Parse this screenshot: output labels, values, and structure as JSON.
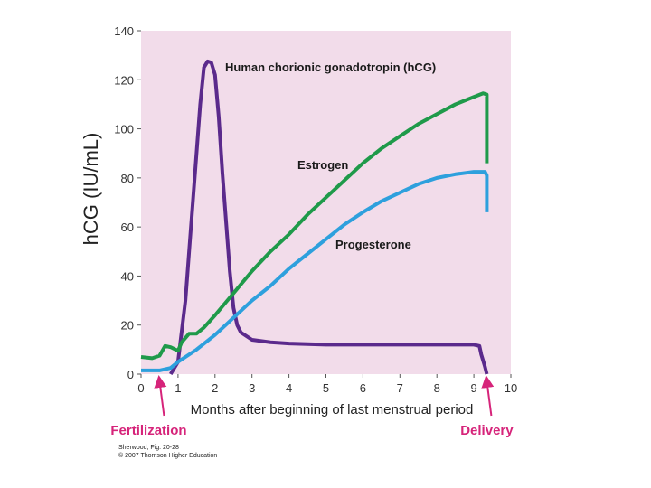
{
  "chart_data": {
    "type": "line",
    "ylabel": "hCG (IU/mL)",
    "xlabel": "Months after beginning of last menstrual period",
    "xlim": [
      0,
      10
    ],
    "ylim": [
      0,
      140
    ],
    "x_ticks": [
      "0",
      "1",
      "2",
      "3",
      "4",
      "5",
      "6",
      "7",
      "8",
      "9",
      "10"
    ],
    "y_ticks": [
      "0",
      "20",
      "40",
      "60",
      "80",
      "100",
      "120",
      "140"
    ],
    "grid": false,
    "plot_background": "#f2dcea",
    "series": [
      {
        "name": "Human chorionic gonadotropin (hCG)",
        "color": "#5b2a8c",
        "points": [
          [
            0.8,
            0
          ],
          [
            1.0,
            5
          ],
          [
            1.2,
            30
          ],
          [
            1.4,
            70
          ],
          [
            1.6,
            110
          ],
          [
            1.7,
            125
          ],
          [
            1.8,
            127.5
          ],
          [
            1.9,
            127
          ],
          [
            2.0,
            122
          ],
          [
            2.1,
            105
          ],
          [
            2.2,
            82
          ],
          [
            2.3,
            62
          ],
          [
            2.4,
            42
          ],
          [
            2.5,
            27
          ],
          [
            2.6,
            20
          ],
          [
            2.7,
            17
          ],
          [
            3.0,
            14
          ],
          [
            3.5,
            13
          ],
          [
            4.0,
            12.5
          ],
          [
            5.0,
            12
          ],
          [
            6.0,
            12
          ],
          [
            7.0,
            12
          ],
          [
            8.0,
            12
          ],
          [
            9.0,
            12
          ],
          [
            9.15,
            11.5
          ],
          [
            9.2,
            8
          ],
          [
            9.3,
            3
          ],
          [
            9.35,
            0
          ]
        ]
      },
      {
        "name": "Estrogen",
        "color": "#1f9a4a",
        "points": [
          [
            0,
            7
          ],
          [
            0.3,
            6.5
          ],
          [
            0.5,
            7.5
          ],
          [
            0.65,
            11.5
          ],
          [
            0.8,
            11
          ],
          [
            1.0,
            9.5
          ],
          [
            1.1,
            13
          ],
          [
            1.3,
            16.5
          ],
          [
            1.5,
            16.5
          ],
          [
            1.7,
            19
          ],
          [
            2.0,
            24
          ],
          [
            2.5,
            33
          ],
          [
            3.0,
            42
          ],
          [
            3.5,
            50
          ],
          [
            4.0,
            57
          ],
          [
            4.5,
            65
          ],
          [
            5.0,
            72
          ],
          [
            5.5,
            79
          ],
          [
            6.0,
            86
          ],
          [
            6.5,
            92
          ],
          [
            7.0,
            97
          ],
          [
            7.5,
            102
          ],
          [
            8.0,
            106
          ],
          [
            8.5,
            110
          ],
          [
            9.0,
            113
          ],
          [
            9.25,
            114.5
          ],
          [
            9.35,
            114
          ],
          [
            9.35,
            86
          ]
        ]
      },
      {
        "name": "Progesterone",
        "color": "#2ea0dd",
        "points": [
          [
            0,
            1.5
          ],
          [
            0.5,
            1.5
          ],
          [
            0.8,
            2.5
          ],
          [
            1.0,
            5
          ],
          [
            1.5,
            10
          ],
          [
            2.0,
            16
          ],
          [
            2.5,
            23
          ],
          [
            3.0,
            30
          ],
          [
            3.5,
            36
          ],
          [
            4.0,
            43
          ],
          [
            4.5,
            49
          ],
          [
            5.0,
            55
          ],
          [
            5.5,
            61
          ],
          [
            6.0,
            66
          ],
          [
            6.5,
            70.5
          ],
          [
            7.0,
            74
          ],
          [
            7.5,
            77.5
          ],
          [
            8.0,
            80
          ],
          [
            8.5,
            81.5
          ],
          [
            9.0,
            82.5
          ],
          [
            9.3,
            82.5
          ],
          [
            9.35,
            81
          ],
          [
            9.35,
            66
          ]
        ]
      }
    ],
    "annotations": [
      {
        "text": "Fertilization",
        "x": 0.5,
        "color": "#d6247a"
      },
      {
        "text": "Delivery",
        "x": 9.35,
        "color": "#d6247a"
      }
    ]
  },
  "credit": {
    "line1": "Sherwood, Fig. 20-28",
    "line2": "© 2007 Thomson Higher Education"
  }
}
